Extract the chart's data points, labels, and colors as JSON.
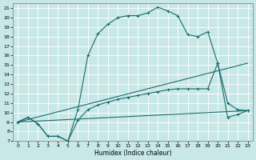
{
  "xlabel": "Humidex (Indice chaleur)",
  "bg_color": "#c8e8e8",
  "grid_color": "#ffffff",
  "line_color": "#1a6b6b",
  "xlim": [
    -0.5,
    23.5
  ],
  "ylim": [
    7,
    21.5
  ],
  "xticks": [
    0,
    1,
    2,
    3,
    4,
    5,
    6,
    7,
    8,
    9,
    10,
    11,
    12,
    13,
    14,
    15,
    16,
    17,
    18,
    19,
    20,
    21,
    22,
    23
  ],
  "yticks": [
    7,
    8,
    9,
    10,
    11,
    12,
    13,
    14,
    15,
    16,
    17,
    18,
    19,
    20,
    21
  ],
  "curve1_x": [
    0,
    1,
    2,
    3,
    4,
    5,
    6,
    7,
    8,
    9,
    10,
    11,
    12,
    13,
    14,
    15,
    16,
    17,
    18,
    19,
    20,
    21,
    22,
    23
  ],
  "curve1_y": [
    9.0,
    9.5,
    8.8,
    7.5,
    7.5,
    7.0,
    10.3,
    16.0,
    18.3,
    19.3,
    20.0,
    20.2,
    20.2,
    20.5,
    21.1,
    20.7,
    20.2,
    18.2,
    18.0,
    18.5,
    15.2,
    9.5,
    9.8,
    10.2
  ],
  "curve2_x": [
    0,
    1,
    2,
    3,
    4,
    5,
    6,
    7,
    8,
    9,
    10,
    11,
    12,
    13,
    14,
    15,
    16,
    17,
    18,
    19,
    20,
    21,
    22,
    23
  ],
  "curve2_y": [
    9.0,
    9.5,
    8.8,
    7.5,
    7.5,
    7.0,
    9.2,
    10.3,
    10.8,
    11.1,
    11.4,
    11.6,
    11.8,
    12.0,
    12.2,
    12.4,
    12.5,
    12.5,
    12.5,
    12.5,
    15.2,
    11.0,
    10.3,
    10.2
  ],
  "curve3_x": [
    0,
    23
  ],
  "curve3_y": [
    9.0,
    15.2
  ],
  "curve4_x": [
    0,
    23
  ],
  "curve4_y": [
    9.0,
    10.2
  ]
}
